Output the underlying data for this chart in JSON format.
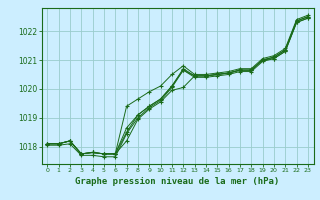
{
  "title": "Graphe pression niveau de la mer (hPa)",
  "bg_color": "#cceeff",
  "grid_color": "#99cccc",
  "line_color": "#1a6b1a",
  "xlim": [
    -0.5,
    23.5
  ],
  "ylim": [
    1017.4,
    1022.8
  ],
  "yticks": [
    1018,
    1019,
    1020,
    1021,
    1022
  ],
  "xticks": [
    0,
    1,
    2,
    3,
    4,
    5,
    6,
    7,
    8,
    9,
    10,
    11,
    12,
    13,
    14,
    15,
    16,
    17,
    18,
    19,
    20,
    21,
    22,
    23
  ],
  "series": [
    [
      1018.1,
      1018.1,
      1018.2,
      1017.75,
      1017.8,
      1017.75,
      1017.75,
      1018.5,
      1019.1,
      1019.4,
      1019.65,
      1020.1,
      1020.7,
      1020.45,
      1020.45,
      1020.5,
      1020.55,
      1020.65,
      1020.65,
      1021.0,
      1021.1,
      1021.35,
      1022.35,
      1022.5
    ],
    [
      1018.1,
      1018.1,
      1018.2,
      1017.75,
      1017.8,
      1017.75,
      1017.75,
      1018.2,
      1018.95,
      1019.3,
      1019.55,
      1019.95,
      1020.05,
      1020.45,
      1020.45,
      1020.5,
      1020.55,
      1020.65,
      1020.65,
      1021.0,
      1021.05,
      1021.3,
      1022.3,
      1022.45
    ],
    [
      1018.1,
      1018.1,
      1018.2,
      1017.75,
      1017.8,
      1017.75,
      1017.75,
      1018.65,
      1019.1,
      1019.4,
      1019.65,
      1020.1,
      1020.65,
      1020.45,
      1020.45,
      1020.5,
      1020.55,
      1020.65,
      1020.65,
      1021.0,
      1021.1,
      1021.35,
      1022.35,
      1022.5
    ],
    [
      1018.05,
      1018.05,
      1018.1,
      1017.7,
      1017.7,
      1017.65,
      1017.65,
      1018.45,
      1019.0,
      1019.35,
      1019.6,
      1020.05,
      1020.65,
      1020.4,
      1020.4,
      1020.45,
      1020.5,
      1020.6,
      1020.6,
      1020.95,
      1021.05,
      1021.3,
      1022.3,
      1022.45
    ],
    [
      1018.1,
      1018.1,
      1018.2,
      1017.75,
      1017.8,
      1017.75,
      1017.75,
      1019.4,
      1019.65,
      1019.9,
      1020.1,
      1020.5,
      1020.8,
      1020.5,
      1020.5,
      1020.55,
      1020.6,
      1020.7,
      1020.7,
      1021.05,
      1021.15,
      1021.4,
      1022.4,
      1022.55
    ]
  ]
}
